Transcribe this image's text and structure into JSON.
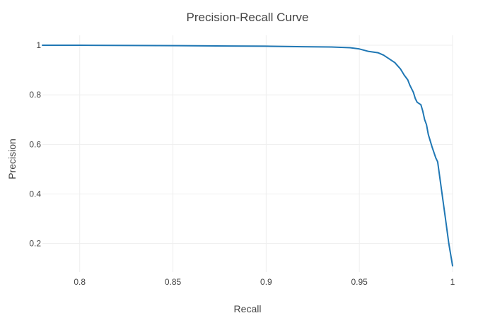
{
  "chart_data": {
    "type": "line",
    "title": "Precision-Recall Curve",
    "xlabel": "Recall",
    "ylabel": "Precision",
    "xlim": [
      0.78,
      1.0
    ],
    "ylim": [
      0.085,
      1.04
    ],
    "xticks": [
      0.8,
      0.85,
      0.9,
      0.95,
      1
    ],
    "xtick_labels": [
      "0.8",
      "0.85",
      "0.9",
      "0.95",
      "1"
    ],
    "yticks": [
      0.2,
      0.4,
      0.6,
      0.8,
      1
    ],
    "ytick_labels": [
      "0.2",
      "0.4",
      "0.6",
      "0.8",
      "1"
    ],
    "grid": true,
    "series": [
      {
        "color": "#1f77b4",
        "x": [
          0.78,
          0.8,
          0.83,
          0.86,
          0.88,
          0.9,
          0.92,
          0.935,
          0.945,
          0.95,
          0.955,
          0.96,
          0.963,
          0.966,
          0.969,
          0.972,
          0.974,
          0.976,
          0.977,
          0.979,
          0.98,
          0.981,
          0.983,
          0.984,
          0.985,
          0.986,
          0.987,
          0.989,
          0.991,
          0.992,
          0.994,
          0.996,
          0.998,
          1.0
        ],
        "y": [
          1.0,
          1.0,
          0.999,
          0.998,
          0.997,
          0.996,
          0.994,
          0.993,
          0.99,
          0.985,
          0.975,
          0.97,
          0.96,
          0.945,
          0.93,
          0.905,
          0.88,
          0.86,
          0.84,
          0.81,
          0.785,
          0.77,
          0.76,
          0.735,
          0.7,
          0.68,
          0.64,
          0.59,
          0.545,
          0.53,
          0.42,
          0.31,
          0.2,
          0.11
        ]
      }
    ]
  }
}
